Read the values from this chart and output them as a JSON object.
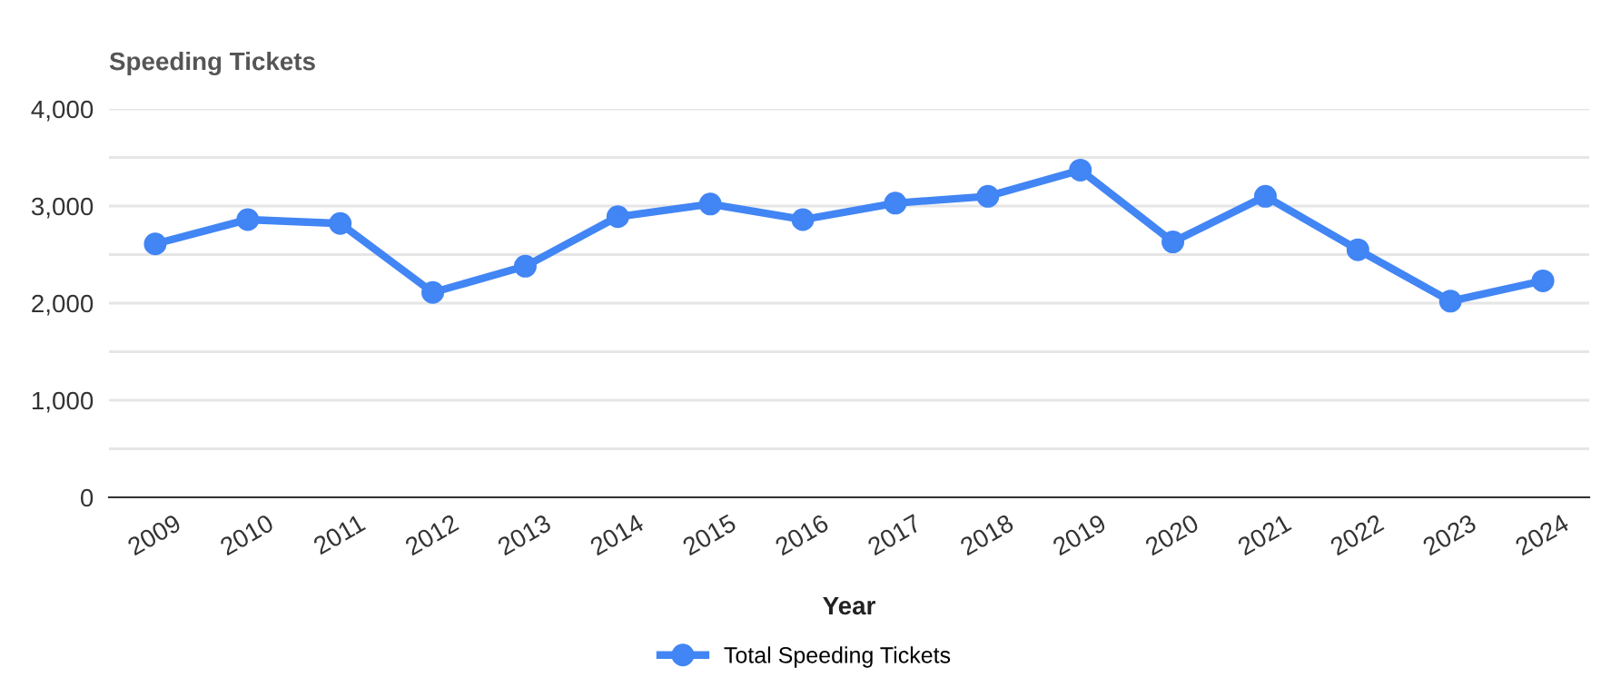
{
  "chart_data": {
    "type": "line",
    "title": "Speeding Tickets",
    "xlabel": "Year",
    "categories": [
      "2009",
      "2010",
      "2011",
      "2012",
      "2013",
      "2014",
      "2015",
      "2016",
      "2017",
      "2018",
      "2019",
      "2020",
      "2021",
      "2022",
      "2023",
      "2024"
    ],
    "series": [
      {
        "name": "Total Speeding Tickets",
        "color": "#4285f4",
        "values": [
          2610,
          2860,
          2820,
          2110,
          2380,
          2890,
          3020,
          2860,
          3030,
          3100,
          3370,
          2630,
          3100,
          2550,
          2020,
          2230
        ]
      }
    ],
    "ylim": [
      0,
      4000
    ],
    "yticks": [
      0,
      {
        "value": 500,
        "label": null
      },
      {
        "value": 1000,
        "label": "1,000"
      },
      {
        "value": 1500,
        "label": null
      },
      {
        "value": 2000,
        "label": "2,000"
      },
      {
        "value": 2500,
        "label": null
      },
      {
        "value": 3000,
        "label": "3,000"
      },
      {
        "value": 3500,
        "label": null
      },
      {
        "value": 4000,
        "label": "4,000"
      }
    ],
    "grid": "y",
    "legend": "bottom",
    "marker": "circle",
    "line_style": "solid"
  }
}
